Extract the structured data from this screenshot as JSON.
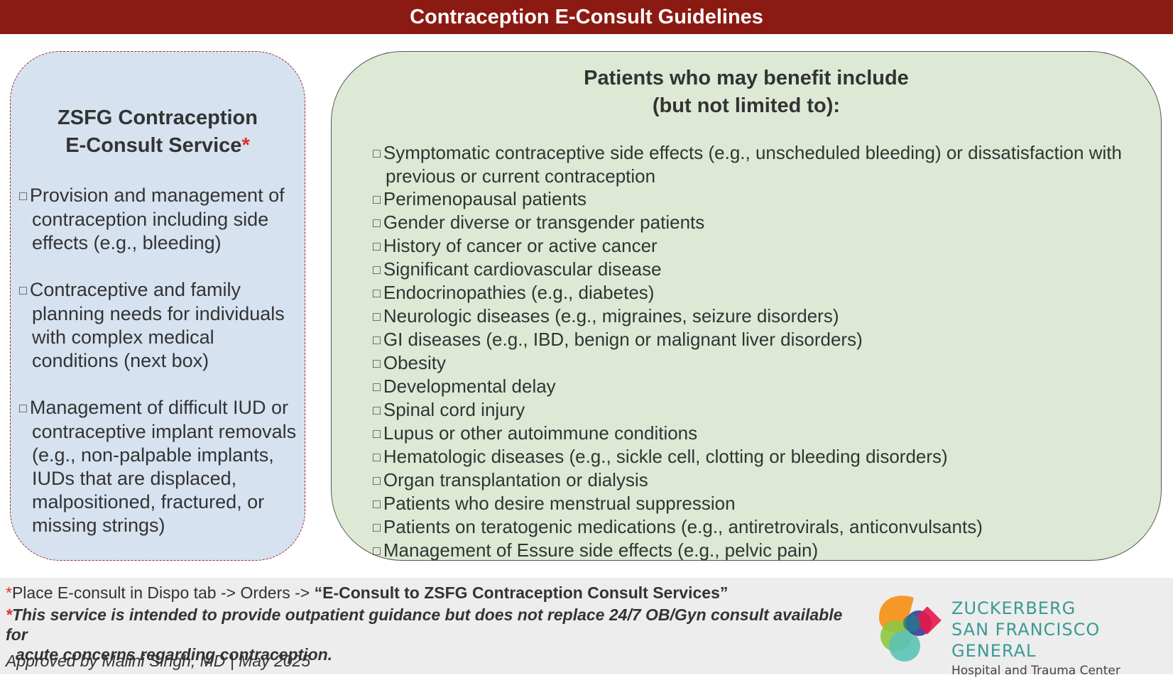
{
  "title": "Contraception E-Consult Guidelines",
  "left_box": {
    "heading_line1": "ZSFG Contraception",
    "heading_line2": "E-Consult Service",
    "asterisk": "*",
    "checkbox": "□",
    "items": [
      "Provision and management of contraception including side effects (e.g., bleeding)",
      "Contraceptive and family planning needs for individuals with complex medical conditions (next box)",
      "Management of difficult IUD or contraceptive implant removals (e.g., non-palpable implants, IUDs that are displaced, malpositioned, fractured, or missing strings)"
    ]
  },
  "right_box": {
    "heading_line1": "Patients who may benefit include",
    "heading_line2": "(but not limited to):",
    "items": [
      "Symptomatic contraceptive side effects (e.g., unscheduled bleeding) or dissatisfaction with previous or current contraception",
      "Perimenopausal patients",
      "Gender diverse or transgender patients",
      "History of cancer or active cancer",
      "Significant cardiovascular disease",
      "Endocrinopathies (e.g., diabetes)",
      "Neurologic diseases (e.g., migraines, seizure disorders)",
      "GI diseases (e.g., IBD, benign or malignant liver disorders)",
      "Obesity",
      "Developmental delay",
      "Spinal cord injury",
      "Lupus or other autoimmune conditions",
      "Hematologic diseases (e.g., sickle cell, clotting or bleeding disorders)",
      "Organ transplantation or dialysis",
      "Patients who desire menstrual suppression",
      "Patients on teratogenic medications (e.g., antiretrovirals, anticonvulsants)",
      "Management of Essure side effects (e.g., pelvic pain)"
    ]
  },
  "footer": {
    "line1_prefix": "Place E-consult in Dispo tab -> Orders -> ",
    "line1_bold": "“E-Consult to ZSFG Contraception Consult Services”",
    "line2a": "This service is intended to provide outpatient guidance but does not replace 24/7 OB/Gyn consult available for",
    "line2b": "acute concerns regarding contraception.",
    "approved": "Approved by Malini Singh, MD  |  May 2025"
  },
  "logo": {
    "line1": "ZUCKERBERG",
    "line2": "SAN FRANCISCO GENERAL",
    "line3": "Hospital and Trauma Center",
    "colors": [
      "#f7941d",
      "#8dc63f",
      "#5bc2b6",
      "#2e3192",
      "#e8174a"
    ]
  },
  "colors": {
    "title_bar": "#8b1a12",
    "left_box": "#d6e2f0",
    "right_box": "#dde9d5",
    "asterisk": "#e0302a",
    "footer": "#ededed"
  }
}
